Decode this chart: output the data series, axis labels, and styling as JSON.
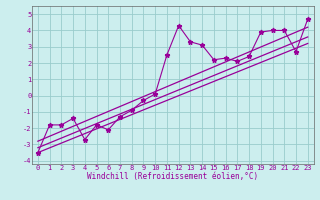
{
  "title": "",
  "xlabel": "Windchill (Refroidissement éolien,°C)",
  "bg_color": "#cceeee",
  "grid_color": "#99cccc",
  "line_color": "#990099",
  "spine_color": "#666666",
  "xlim": [
    -0.5,
    23.5
  ],
  "ylim": [
    -4.2,
    5.5
  ],
  "xticks": [
    0,
    1,
    2,
    3,
    4,
    5,
    6,
    7,
    8,
    9,
    10,
    11,
    12,
    13,
    14,
    15,
    16,
    17,
    18,
    19,
    20,
    21,
    22,
    23
  ],
  "yticks": [
    -4,
    -3,
    -2,
    -1,
    0,
    1,
    2,
    3,
    4,
    5
  ],
  "data_x": [
    0,
    1,
    2,
    3,
    4,
    5,
    6,
    7,
    8,
    9,
    10,
    11,
    12,
    13,
    14,
    15,
    16,
    17,
    18,
    19,
    20,
    21,
    22,
    23
  ],
  "data_y": [
    -3.5,
    -1.8,
    -1.8,
    -1.4,
    -2.7,
    -1.8,
    -2.1,
    -1.3,
    -0.9,
    -0.3,
    0.1,
    2.5,
    4.3,
    3.3,
    3.1,
    2.2,
    2.3,
    2.1,
    2.4,
    3.9,
    4.0,
    4.0,
    2.7,
    4.7
  ],
  "reg_lines": [
    [
      -3.2,
      3.6
    ],
    [
      -2.8,
      4.2
    ],
    [
      -3.5,
      3.2
    ]
  ],
  "xlabel_fontsize": 5.5,
  "tick_fontsize": 5.0
}
